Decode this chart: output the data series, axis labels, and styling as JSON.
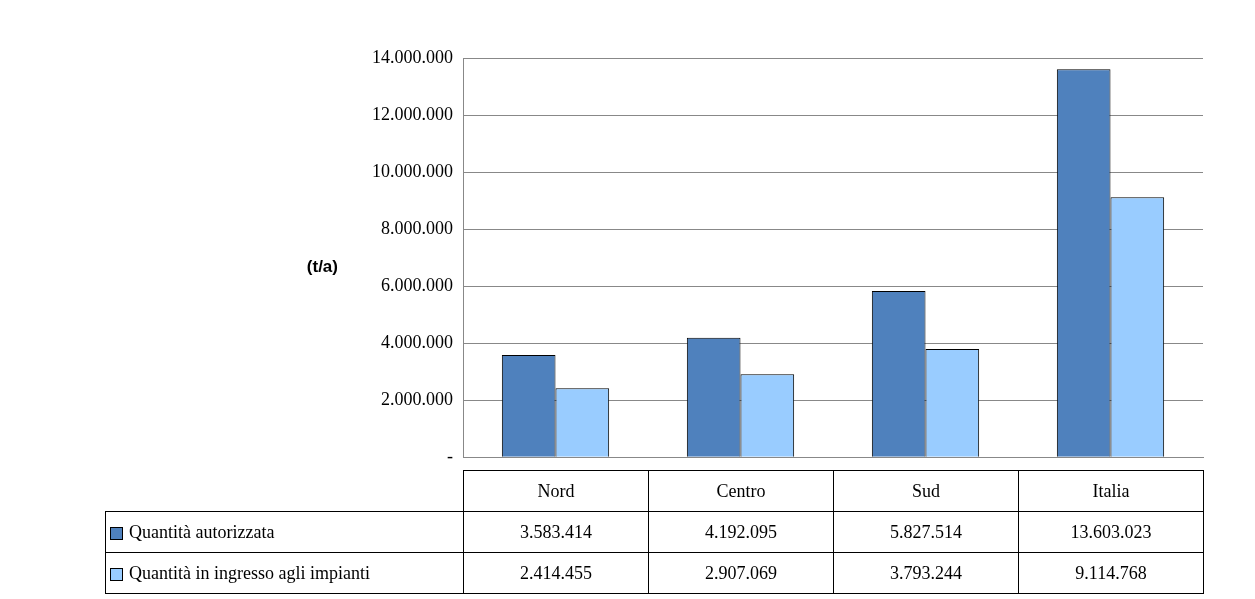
{
  "chart_data": {
    "type": "bar",
    "ylabel": "(t/a)",
    "categories": [
      "Nord",
      "Centro",
      "Sud",
      "Italia"
    ],
    "series": [
      {
        "name": "Quantità autorizzata",
        "color": "#4f81bd",
        "values": [
          3583414,
          4192095,
          5827514,
          13603023
        ],
        "value_labels": [
          "3.583.414",
          "4.192.095",
          "5.827.514",
          "13.603.023"
        ]
      },
      {
        "name": "Quantità in ingresso agli impianti",
        "color": "#99ccff",
        "values": [
          2414455,
          2907069,
          3793244,
          9114768
        ],
        "value_labels": [
          "2.414.455",
          "2.907.069",
          "3.793.244",
          "9.114.768"
        ]
      }
    ],
    "ylim": [
      0,
      14000000
    ],
    "yticks": [
      {
        "value": 0,
        "label": "-"
      },
      {
        "value": 2000000,
        "label": "2.000.000"
      },
      {
        "value": 4000000,
        "label": "4.000.000"
      },
      {
        "value": 6000000,
        "label": "6.000.000"
      },
      {
        "value": 8000000,
        "label": "8.000.000"
      },
      {
        "value": 10000000,
        "label": "10.000.000"
      },
      {
        "value": 12000000,
        "label": "12.000.000"
      },
      {
        "value": 14000000,
        "label": "14.000.000"
      }
    ],
    "grid": "y",
    "legend": "bottom"
  }
}
